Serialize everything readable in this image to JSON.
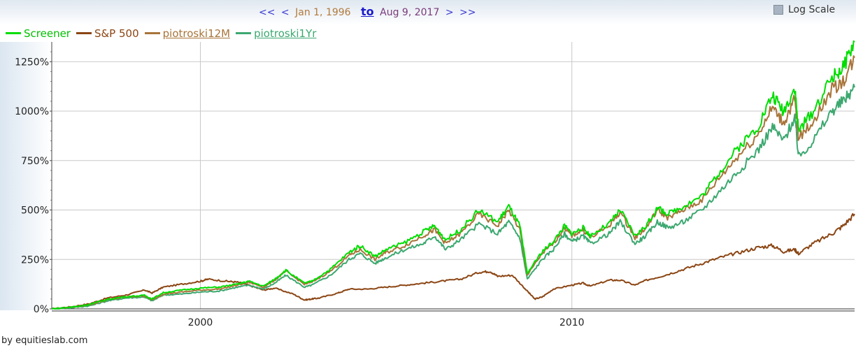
{
  "nav": {
    "prev_far": "<<",
    "prev": "<",
    "start_date": "Jan 1, 1996",
    "to_label": "to",
    "end_date": "Aug 9, 2017",
    "next": ">",
    "next_far": ">>"
  },
  "log_scale": {
    "label": "Log Scale",
    "checked": false
  },
  "legend": [
    {
      "label": "Screener",
      "color": "#00dd00",
      "link": false
    },
    {
      "label": "S&P 500",
      "color": "#8b4513",
      "link": false
    },
    {
      "label": "piotroski12M",
      "color": "#a8743a",
      "link": true
    },
    {
      "label": "piotroski1Yr",
      "color": "#3ca870",
      "link": true
    }
  ],
  "footer": "by equitieslab.com",
  "chart_data": {
    "type": "line",
    "x_range": [
      1996.0,
      2017.61
    ],
    "ylim": [
      0,
      1350
    ],
    "y_ticks": [
      0,
      250,
      500,
      750,
      1000,
      1250
    ],
    "y_tick_labels": [
      "0%",
      "250%",
      "500%",
      "750%",
      "1000%",
      "1250%"
    ],
    "x_ticks": [
      2000,
      2010
    ],
    "x_tick_labels": [
      "2000",
      "2010"
    ],
    "grid": true,
    "legend_position": "top-left",
    "series": [
      {
        "name": "S&P 500",
        "color": "#8b4513",
        "x": [
          1996.0,
          1996.5,
          1997.0,
          1997.5,
          1998.0,
          1998.5,
          1998.7,
          1999.0,
          1999.5,
          2000.0,
          2000.2,
          2000.7,
          2001.0,
          2001.3,
          2001.7,
          2002.0,
          2002.5,
          2002.8,
          2003.0,
          2003.2,
          2003.7,
          2004.0,
          2004.5,
          2005.0,
          2005.5,
          2006.0,
          2006.5,
          2007.0,
          2007.5,
          2007.8,
          2008.0,
          2008.4,
          2008.8,
          2009.0,
          2009.2,
          2009.5,
          2010.0,
          2010.3,
          2010.5,
          2011.0,
          2011.3,
          2011.7,
          2012.0,
          2012.5,
          2013.0,
          2013.5,
          2014.0,
          2014.5,
          2015.0,
          2015.4,
          2015.7,
          2016.0,
          2016.1,
          2016.5,
          2017.0,
          2017.3,
          2017.61
        ],
        "values": [
          0,
          10,
          25,
          55,
          70,
          95,
          80,
          110,
          125,
          140,
          150,
          140,
          135,
          120,
          95,
          105,
          75,
          45,
          50,
          55,
          80,
          100,
          100,
          110,
          120,
          130,
          140,
          150,
          185,
          190,
          165,
          170,
          90,
          50,
          60,
          100,
          120,
          130,
          115,
          145,
          145,
          120,
          145,
          170,
          200,
          230,
          260,
          285,
          310,
          320,
          290,
          300,
          280,
          330,
          380,
          420,
          480
        ]
      },
      {
        "name": "piotroski1Yr",
        "color": "#3ca870",
        "x": [
          1996.0,
          1996.5,
          1997.0,
          1997.5,
          1998.0,
          1998.5,
          1998.7,
          1999.0,
          1999.5,
          2000.0,
          2000.5,
          2001.0,
          2001.3,
          2001.7,
          2002.0,
          2002.3,
          2002.8,
          2003.0,
          2003.5,
          2004.0,
          2004.3,
          2004.7,
          2005.0,
          2005.5,
          2006.0,
          2006.3,
          2006.6,
          2007.0,
          2007.5,
          2008.0,
          2008.3,
          2008.6,
          2008.8,
          2009.2,
          2009.5,
          2009.8,
          2010.0,
          2010.3,
          2010.5,
          2011.0,
          2011.3,
          2011.7,
          2012.0,
          2012.3,
          2012.6,
          2013.0,
          2013.5,
          2014.0,
          2014.5,
          2015.0,
          2015.4,
          2015.7,
          2016.0,
          2016.1,
          2016.5,
          2017.0,
          2017.3,
          2017.61
        ],
        "values": [
          0,
          5,
          15,
          40,
          55,
          60,
          40,
          70,
          75,
          85,
          90,
          110,
          120,
          100,
          130,
          170,
          110,
          120,
          170,
          250,
          280,
          230,
          260,
          300,
          330,
          370,
          300,
          350,
          430,
          380,
          440,
          360,
          150,
          250,
          300,
          380,
          340,
          370,
          330,
          380,
          440,
          330,
          370,
          440,
          410,
          440,
          500,
          600,
          700,
          800,
          920,
          850,
          970,
          770,
          850,
          1000,
          1050,
          1120
        ]
      },
      {
        "name": "piotroski12M",
        "color": "#a8743a",
        "x": [
          1996.0,
          1996.5,
          1997.0,
          1997.5,
          1998.0,
          1998.5,
          1998.7,
          1999.0,
          1999.5,
          2000.0,
          2000.5,
          2001.0,
          2001.3,
          2001.7,
          2002.0,
          2002.3,
          2002.8,
          2003.0,
          2003.5,
          2004.0,
          2004.3,
          2004.7,
          2005.0,
          2005.5,
          2006.0,
          2006.3,
          2006.6,
          2007.0,
          2007.5,
          2008.0,
          2008.3,
          2008.6,
          2008.8,
          2009.2,
          2009.5,
          2009.8,
          2010.0,
          2010.3,
          2010.5,
          2011.0,
          2011.3,
          2011.7,
          2012.0,
          2012.3,
          2012.6,
          2013.0,
          2013.5,
          2014.0,
          2014.5,
          2015.0,
          2015.4,
          2015.7,
          2016.0,
          2016.1,
          2016.5,
          2017.0,
          2017.3,
          2017.61
        ],
        "values": [
          0,
          8,
          20,
          45,
          60,
          65,
          45,
          75,
          85,
          95,
          100,
          120,
          135,
          110,
          145,
          190,
          125,
          135,
          190,
          270,
          300,
          250,
          285,
          320,
          370,
          400,
          330,
          380,
          480,
          420,
          500,
          400,
          170,
          280,
          330,
          410,
          370,
          400,
          360,
          420,
          490,
          360,
          410,
          500,
          460,
          500,
          550,
          670,
          780,
          880,
          1020,
          940,
          1060,
          860,
          950,
          1110,
          1150,
          1270
        ]
      },
      {
        "name": "Screener",
        "color": "#00dd00",
        "x": [
          1996.0,
          1996.5,
          1997.0,
          1997.5,
          1998.0,
          1998.5,
          1998.7,
          1999.0,
          1999.5,
          2000.0,
          2000.5,
          2001.0,
          2001.3,
          2001.7,
          2002.0,
          2002.3,
          2002.8,
          2003.0,
          2003.5,
          2004.0,
          2004.3,
          2004.7,
          2005.0,
          2005.5,
          2006.0,
          2006.3,
          2006.6,
          2007.0,
          2007.5,
          2008.0,
          2008.3,
          2008.6,
          2008.8,
          2009.2,
          2009.5,
          2009.8,
          2010.0,
          2010.3,
          2010.5,
          2011.0,
          2011.3,
          2011.7,
          2012.0,
          2012.3,
          2012.6,
          2013.0,
          2013.5,
          2014.0,
          2014.5,
          2015.0,
          2015.4,
          2015.7,
          2016.0,
          2016.1,
          2016.5,
          2017.0,
          2017.3,
          2017.61
        ],
        "values": [
          0,
          8,
          22,
          48,
          62,
          68,
          50,
          82,
          95,
          105,
          110,
          125,
          140,
          115,
          150,
          195,
          130,
          140,
          200,
          285,
          320,
          265,
          300,
          335,
          390,
          420,
          350,
          400,
          500,
          440,
          520,
          420,
          180,
          290,
          340,
          420,
          380,
          410,
          370,
          430,
          500,
          370,
          420,
          510,
          480,
          520,
          570,
          700,
          820,
          920,
          1080,
          1000,
          1120,
          900,
          1000,
          1170,
          1220,
          1350
        ]
      }
    ]
  }
}
